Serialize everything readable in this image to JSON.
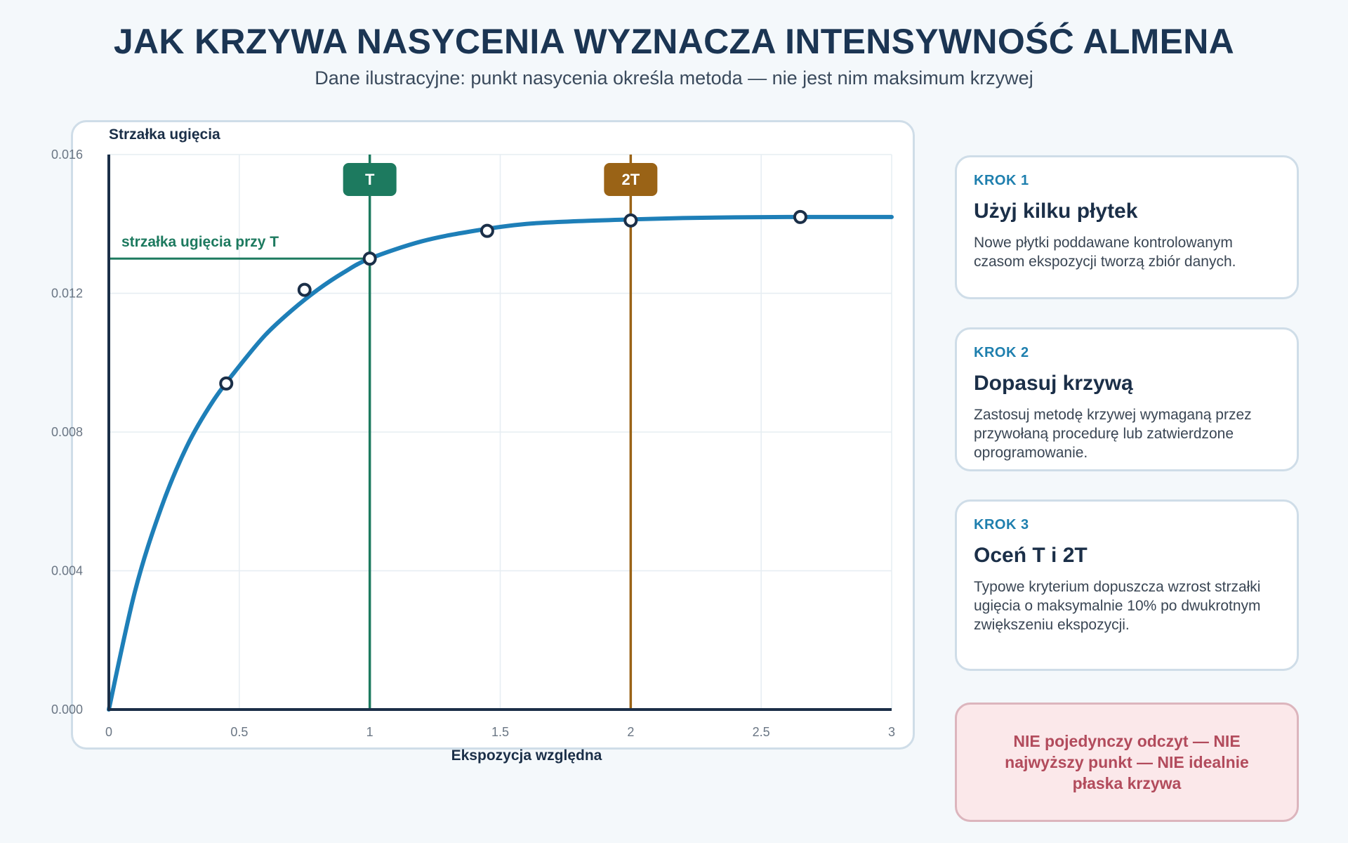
{
  "header": {
    "title": "JAK KRZYWA NASYCENIA WYZNACZA INTENSYWNOŚĆ ALMENA",
    "subtitle": "Dane ilustracyjne: punkt nasycenia określa metoda — nie jest nim maksimum krzywej"
  },
  "chart_data": {
    "type": "line",
    "xlabel": "Ekspozycja względna",
    "ylabel": "Strzałka ugięcia",
    "xlim": [
      0,
      3
    ],
    "ylim": [
      0,
      0.016
    ],
    "xticks": [
      0,
      0.5,
      1,
      1.5,
      2,
      2.5,
      3
    ],
    "xtick_labels": [
      "0",
      "0.5",
      "1",
      "1.5",
      "2",
      "2.5",
      "3"
    ],
    "yticks": [
      0,
      0.004,
      0.008,
      0.012,
      0.016
    ],
    "ytick_labels": [
      "0.000",
      "0.004",
      "0.008",
      "0.012",
      "0.016"
    ],
    "grid": true,
    "curve": {
      "x": [
        0,
        0.1,
        0.2,
        0.3,
        0.4,
        0.5,
        0.6,
        0.7,
        0.8,
        0.9,
        1.0,
        1.2,
        1.4,
        1.6,
        1.8,
        2.0,
        2.2,
        2.4,
        2.6,
        2.8,
        3.0
      ],
      "y": [
        0,
        0.0034,
        0.0058,
        0.0076,
        0.0089,
        0.0099,
        0.0108,
        0.0115,
        0.0121,
        0.0126,
        0.013,
        0.0135,
        0.0138,
        0.014,
        0.01408,
        0.01413,
        0.01417,
        0.01419,
        0.0142,
        0.0142,
        0.0142
      ],
      "color": "#1e7fb8"
    },
    "points": {
      "x": [
        0.45,
        0.75,
        1.0,
        1.45,
        2.0,
        2.65
      ],
      "y": [
        0.0094,
        0.0121,
        0.013,
        0.0138,
        0.0141,
        0.0142
      ]
    },
    "markers": [
      {
        "x": 1,
        "label": "T",
        "color": "#1d7a5f"
      },
      {
        "x": 2,
        "label": "2T",
        "color": "#9a6316"
      }
    ],
    "annotation": {
      "text": "strzałka ugięcia przy T",
      "y": 0.013,
      "color": "#1d7a5f"
    }
  },
  "steps": [
    {
      "kicker": "KROK 1",
      "title": "Użyj kilku płytek",
      "text": "Nowe płytki poddawane kontrolowanym czasom ekspozycji tworzą zbiór danych."
    },
    {
      "kicker": "KROK 2",
      "title": "Dopasuj krzywą",
      "text": "Zastosuj metodę krzywej wymaganą przez przywołaną procedurę lub zatwierdzone oprogramowanie."
    },
    {
      "kicker": "KROK 3",
      "title": "Oceń T i 2T",
      "text": "Typowe kryterium dopuszcza wzrost strzałki ugięcia o maksymalnie 10% po dwukrotnym zwiększeniu ekspozycji."
    }
  ],
  "warning": {
    "text": "NIE pojedynczy odczyt — NIE najwyższy punkt — NIE idealnie płaska krzywa"
  }
}
